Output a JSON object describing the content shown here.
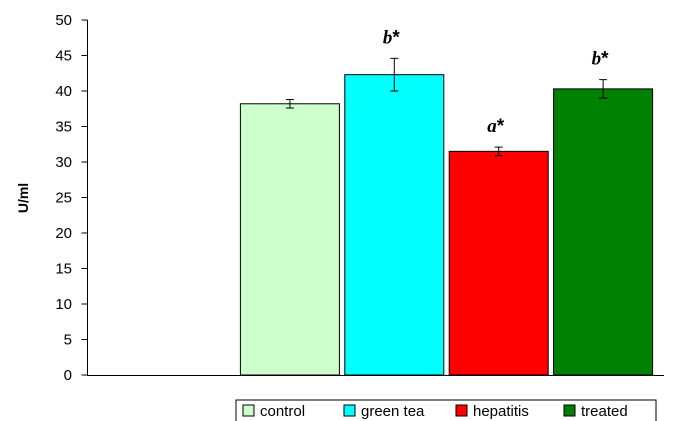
{
  "chart_data": {
    "type": "bar",
    "ylabel": "U/ml",
    "ylim": [
      0,
      50
    ],
    "yticks": [
      0,
      5,
      10,
      15,
      20,
      25,
      30,
      35,
      40,
      45,
      50
    ],
    "grid": false,
    "legend_position": "bottom",
    "series": [
      {
        "name": "control",
        "value": 38.2,
        "error": 0.6,
        "color": "#ccffcc",
        "annotation": ""
      },
      {
        "name": "green tea",
        "value": 42.3,
        "error": 2.3,
        "color": "#00ffff",
        "annotation": "b*"
      },
      {
        "name": "hepatitis",
        "value": 31.5,
        "error": 0.6,
        "color": "#ff0000",
        "annotation": "a*"
      },
      {
        "name": "treated",
        "value": 40.3,
        "error": 1.3,
        "color": "#008000",
        "annotation": "b*"
      }
    ]
  }
}
